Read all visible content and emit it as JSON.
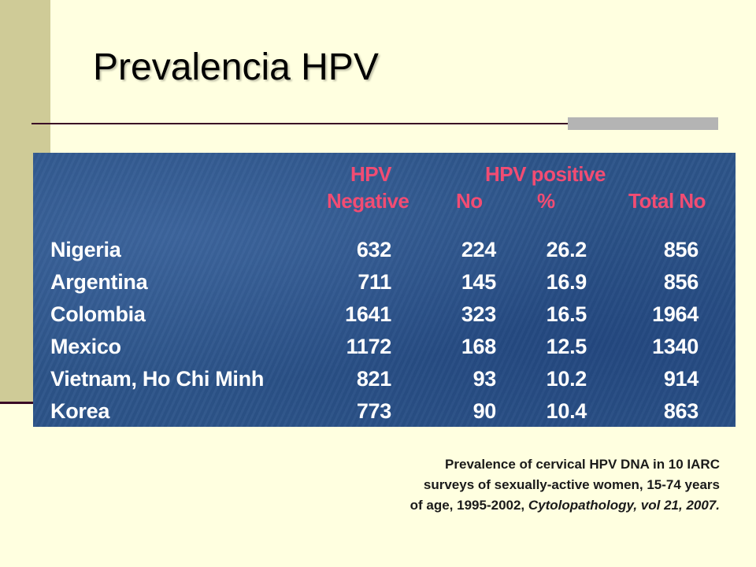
{
  "slide": {
    "title": "Prevalencia HPV"
  },
  "table": {
    "headers": {
      "hpv_negative_line1": "HPV",
      "hpv_negative_line2": "Negative",
      "hpv_positive_group": "HPV positive",
      "positive_no": "No",
      "positive_pct": "%",
      "total_no": "Total No"
    },
    "rows": [
      {
        "country": "Nigeria",
        "negative": "632",
        "positive_no": "224",
        "positive_pct": "26.2",
        "total": "856"
      },
      {
        "country": "Argentina",
        "negative": "711",
        "positive_no": "145",
        "positive_pct": "16.9",
        "total": "856"
      },
      {
        "country": "Colombia",
        "negative": "1641",
        "positive_no": "323",
        "positive_pct": "16.5",
        "total": "1964"
      },
      {
        "country": "Mexico",
        "negative": "1172",
        "positive_no": "168",
        "positive_pct": "12.5",
        "total": "1340"
      },
      {
        "country": "Vietnam, Ho Chi Minh",
        "negative": "821",
        "positive_no": "93",
        "positive_pct": "10.2",
        "total": "914"
      },
      {
        "country": "Korea",
        "negative": "773",
        "positive_no": "90",
        "positive_pct": "10.4",
        "total": "863"
      }
    ]
  },
  "caption": {
    "line1": "Prevalence of cervical HPV DNA in 10 IARC",
    "line2": "surveys of sexually-active women, 15-74 years",
    "line3_plain": "of age, 1995-2002,",
    "line3_italic": "Cytolopathology, vol 21, 2007."
  },
  "colors": {
    "background": "#FFFFE0",
    "left_bar": "#CFCB97",
    "rule": "#3A0C26",
    "rule_accent": "#B4B4B4",
    "table_bg": "#2C5489",
    "header_text": "#F24C73",
    "cell_text": "#FFFFFF"
  }
}
